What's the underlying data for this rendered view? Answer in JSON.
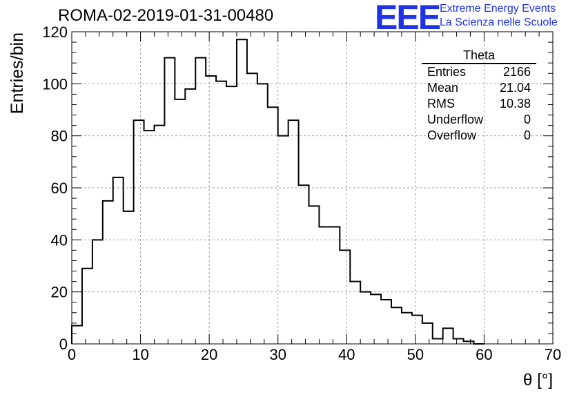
{
  "header": {
    "title": "ROMA-02-2019-01-31-00480",
    "logo_text": "EEE",
    "logo_line1": "Extreme Energy Events",
    "logo_line2": "La Scienza nelle Scuole"
  },
  "stats": {
    "name": "Theta",
    "rows": [
      {
        "label": "Entries",
        "value": "2166"
      },
      {
        "label": "Mean",
        "value": "21.04"
      },
      {
        "label": "RMS",
        "value": "10.38"
      },
      {
        "label": "Underflow",
        "value": "0"
      },
      {
        "label": "Overflow",
        "value": "0"
      }
    ]
  },
  "chart_data": {
    "type": "histogram",
    "xlabel": "θ [°]",
    "ylabel": "Entries/bin",
    "xlim": [
      0,
      70
    ],
    "ylim": [
      0,
      120
    ],
    "grid": true,
    "x_ticks": [
      0,
      10,
      20,
      30,
      40,
      50,
      60,
      70
    ],
    "y_ticks": [
      0,
      20,
      40,
      60,
      80,
      100,
      120
    ],
    "bin_width": 1.5,
    "bin_edges_start": 0,
    "values": [
      7,
      29,
      40,
      55,
      64,
      51,
      86,
      82,
      84,
      110,
      94,
      98,
      110,
      103,
      101,
      99,
      117,
      104,
      100,
      91,
      80,
      86,
      61,
      53,
      45,
      45,
      36,
      24,
      20,
      19,
      17,
      14,
      12,
      11,
      8,
      2,
      6,
      2,
      1,
      0
    ],
    "line_color": "#000000"
  }
}
